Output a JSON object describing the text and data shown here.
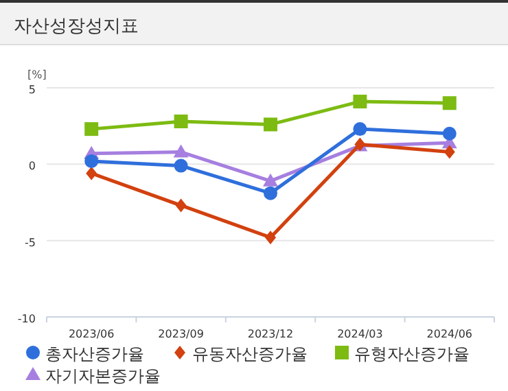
{
  "chart_data": {
    "type": "line",
    "title": "자산성장성지표",
    "ylabel": "[%]",
    "categories": [
      "2023/06",
      "2023/09",
      "2023/12",
      "2024/03",
      "2024/06"
    ],
    "ylim": [
      -10,
      5
    ],
    "yticks": [
      -10,
      -5,
      0,
      5
    ],
    "grid": "y",
    "legend": "bottom",
    "series": [
      {
        "name": "총자산증가율",
        "color": "#2f6fdc",
        "marker": "circle",
        "values": [
          0.2,
          -0.1,
          -1.9,
          2.3,
          2.0
        ]
      },
      {
        "name": "유동자산증가율",
        "color": "#d2410f",
        "marker": "diamond",
        "values": [
          -0.6,
          -2.7,
          -4.8,
          1.3,
          0.8
        ]
      },
      {
        "name": "유형자산증가율",
        "color": "#7dbb12",
        "marker": "square",
        "values": [
          2.3,
          2.8,
          2.6,
          4.1,
          4.0
        ]
      },
      {
        "name": "자기자본증가율",
        "color": "#a67fe0",
        "marker": "triangle",
        "values": [
          0.7,
          0.8,
          -1.1,
          1.2,
          1.4
        ]
      }
    ]
  }
}
